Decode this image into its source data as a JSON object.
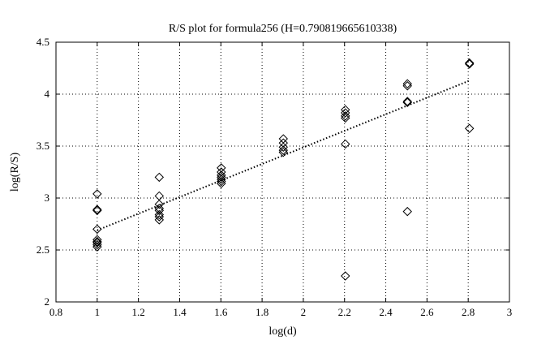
{
  "chart_data": {
    "type": "scatter",
    "title": "R/S plot for formula256 (H=0.790819665610338)",
    "xlabel": "log(d)",
    "ylabel": "log(R/S)",
    "xlim": [
      0.8,
      3.0
    ],
    "ylim": [
      2.0,
      4.5
    ],
    "xticks": [
      0.8,
      1.0,
      1.2,
      1.4,
      1.6,
      1.8,
      2.0,
      2.2,
      2.4,
      2.6,
      2.8,
      3.0
    ],
    "xtick_labels": [
      "0.8",
      "1",
      "1.2",
      "1.4",
      "1.6",
      "1.8",
      "2",
      "2.2",
      "2.4",
      "2.6",
      "2.8",
      "3"
    ],
    "yticks": [
      2.0,
      2.5,
      3.0,
      3.5,
      4.0,
      4.5
    ],
    "ytick_labels": [
      "2",
      "2.5",
      "3",
      "3.5",
      "4",
      "4.5"
    ],
    "grid": true,
    "marker": "diamond",
    "points": [
      [
        1.0,
        3.04
      ],
      [
        1.0,
        2.89
      ],
      [
        1.0,
        2.88
      ],
      [
        1.0,
        2.7
      ],
      [
        1.0,
        2.6
      ],
      [
        1.0,
        2.58
      ],
      [
        1.0,
        2.57
      ],
      [
        1.0,
        2.55
      ],
      [
        1.0,
        2.53
      ],
      [
        1.301,
        3.2
      ],
      [
        1.301,
        3.02
      ],
      [
        1.301,
        2.94
      ],
      [
        1.301,
        2.9
      ],
      [
        1.301,
        2.88
      ],
      [
        1.301,
        2.84
      ],
      [
        1.301,
        2.82
      ],
      [
        1.301,
        2.79
      ],
      [
        1.602,
        3.29
      ],
      [
        1.602,
        3.25
      ],
      [
        1.602,
        3.22
      ],
      [
        1.602,
        3.2
      ],
      [
        1.602,
        3.18
      ],
      [
        1.602,
        3.16
      ],
      [
        1.602,
        3.14
      ],
      [
        1.903,
        3.57
      ],
      [
        1.903,
        3.53
      ],
      [
        1.903,
        3.49
      ],
      [
        1.903,
        3.46
      ],
      [
        1.903,
        3.44
      ],
      [
        2.204,
        3.85
      ],
      [
        2.204,
        3.82
      ],
      [
        2.204,
        3.79
      ],
      [
        2.204,
        3.77
      ],
      [
        2.204,
        3.52
      ],
      [
        2.204,
        2.25
      ],
      [
        2.505,
        4.1
      ],
      [
        2.505,
        4.08
      ],
      [
        2.505,
        3.93
      ],
      [
        2.505,
        3.92
      ],
      [
        2.505,
        2.87
      ],
      [
        2.806,
        4.3
      ],
      [
        2.806,
        4.29
      ],
      [
        2.806,
        3.67
      ]
    ],
    "fit_line": {
      "style": "dotted",
      "x": [
        1.0,
        2.806
      ],
      "y": [
        2.69,
        4.13
      ]
    }
  }
}
